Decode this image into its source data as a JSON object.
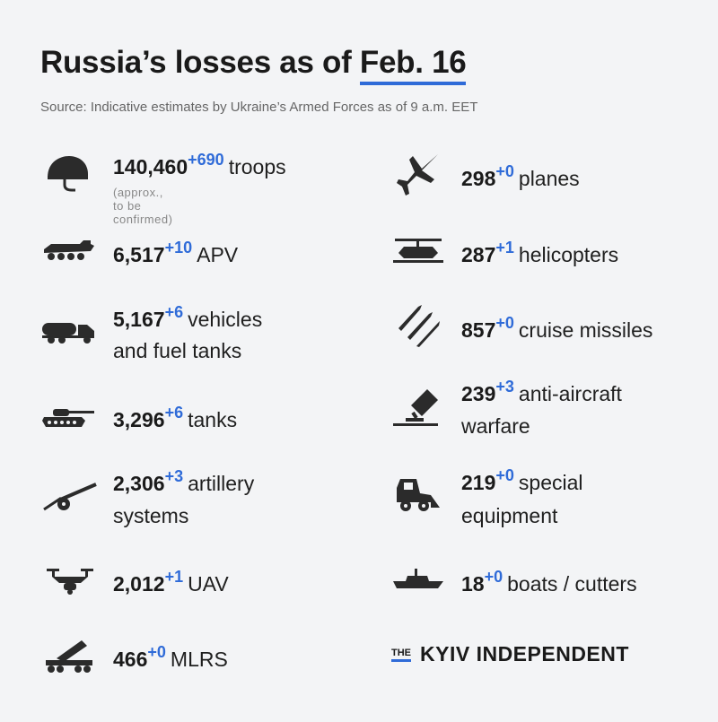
{
  "title_lead": "Russia’s losses as of ",
  "title_date": "Feb. 16",
  "source": "Source: Indicative estimates by Ukraine’s Armed Forces as of 9 a.m. EET",
  "left": [
    {
      "icon": "helmet-icon",
      "num": "140,460",
      "delta": "+690",
      "label": "troops",
      "note": "(approx., to be confirmed)"
    },
    {
      "icon": "apv-icon",
      "num": "6,517",
      "delta": "+10",
      "label": "APV"
    },
    {
      "icon": "fuel-truck-icon",
      "num": "5,167",
      "delta": "+6",
      "label": "vehicles",
      "label2": "and fuel tanks"
    },
    {
      "icon": "tank-icon",
      "num": "3,296",
      "delta": "+6",
      "label": "tanks"
    },
    {
      "icon": "artillery-icon",
      "num": "2,306",
      "delta": "+3",
      "label": "artillery",
      "label2": "systems"
    },
    {
      "icon": "drone-icon",
      "num": "2,012",
      "delta": "+1",
      "label": "UAV"
    },
    {
      "icon": "mlrs-icon",
      "num": "466",
      "delta": "+0",
      "label": "MLRS"
    }
  ],
  "right": [
    {
      "icon": "plane-icon",
      "num": "298",
      "delta": "+0",
      "label": "planes"
    },
    {
      "icon": "helicopter-icon",
      "num": "287",
      "delta": "+1",
      "label": "helicopters"
    },
    {
      "icon": "missile-icon",
      "num": "857",
      "delta": "+0",
      "label": "cruise missiles"
    },
    {
      "icon": "anti-aircraft-icon",
      "num": "239",
      "delta": "+3",
      "label": "anti-aircraft",
      "label2": "warfare"
    },
    {
      "icon": "special-equipment-icon",
      "num": "219",
      "delta": "+0",
      "label": "special",
      "label2": "equipment"
    },
    {
      "icon": "boat-icon",
      "num": "18",
      "delta": "+0",
      "label": "boats / cutters"
    }
  ],
  "logo": {
    "the": "THE",
    "name": "KYIV INDEPENDENT"
  },
  "colors": {
    "accent": "#2f6bd8",
    "text": "#1a1a1a",
    "background": "#f3f4f6",
    "icon": "#2b2b2b"
  }
}
